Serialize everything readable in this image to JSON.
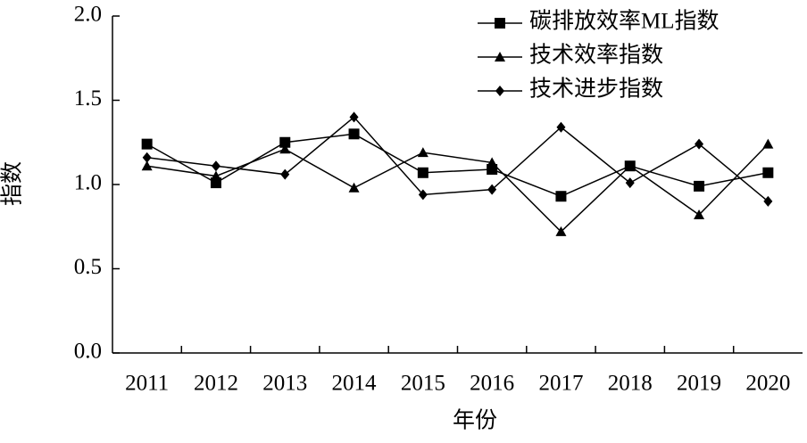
{
  "chart_data": {
    "type": "line",
    "x_label": "年份",
    "y_label": "指数",
    "categories": [
      "2011",
      "2012",
      "2013",
      "2014",
      "2015",
      "2016",
      "2017",
      "2018",
      "2019",
      "2020"
    ],
    "ylim": [
      0,
      2
    ],
    "yticks": [
      {
        "value": 0,
        "label": "0.0"
      },
      0.5,
      {
        "value": 1,
        "label": "1.0"
      },
      1.5,
      {
        "value": 2,
        "label": "2.0"
      }
    ],
    "grid": false,
    "legend": "top-right",
    "series": [
      {
        "name": "碳排放效率ML指数",
        "color": "#000000",
        "marker": "square",
        "values": [
          1.24,
          1.01,
          1.25,
          1.3,
          1.07,
          1.09,
          0.93,
          1.11,
          0.99,
          1.07
        ]
      },
      {
        "name": "技术效率指数",
        "color": "#000000",
        "marker": "triangle",
        "values": [
          1.11,
          1.05,
          1.21,
          0.98,
          1.19,
          1.13,
          0.72,
          1.11,
          0.82,
          1.24
        ]
      },
      {
        "name": "技术进步指数",
        "color": "#000000",
        "marker": "diamond",
        "values": [
          1.16,
          1.11,
          1.06,
          1.4,
          0.94,
          0.97,
          1.34,
          1.01,
          1.24,
          0.9
        ]
      }
    ]
  }
}
